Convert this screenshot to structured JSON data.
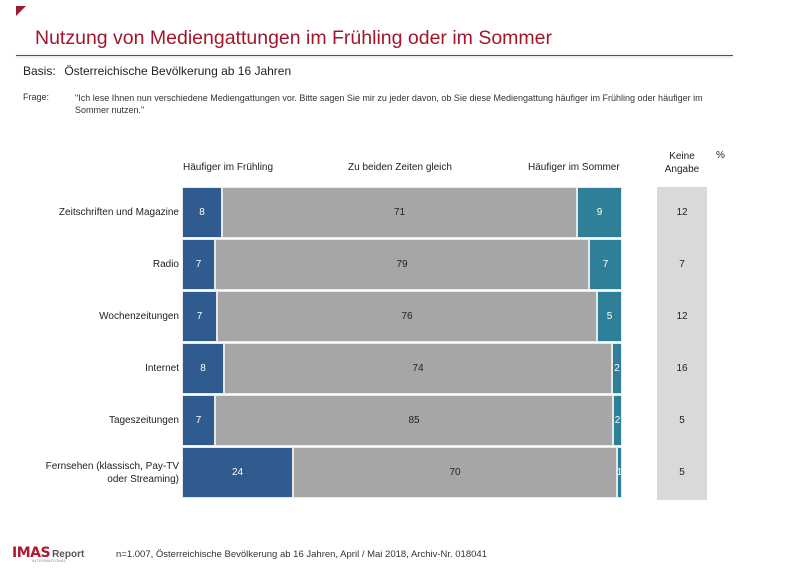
{
  "header": {
    "title": "Nutzung von Mediengattungen im Frühling oder im Sommer",
    "basis_label": "Basis:",
    "basis_text": "Österreichische Bevölkerung ab 16 Jahren",
    "frage_label": "Frage:",
    "frage_text": "\"Ich lese Ihnen nun verschiedene Mediengattungen vor. Bitte sagen Sie mir zu jeder davon, ob Sie diese Mediengattung häufiger im Frühling oder häufiger im Sommer nutzen.\""
  },
  "colors": {
    "title": "#a3162c",
    "spring": "#2f5b8e",
    "both": "#a6a6a6",
    "summer": "#2e8099",
    "no_answer_bg": "#d9d9d9"
  },
  "chart_data": {
    "type": "bar",
    "orientation": "horizontal",
    "stacked": true,
    "title": "Nutzung von Mediengattungen im Frühling oder im Sommer",
    "unit": "%",
    "categories": [
      "Zeitschriften und Magazine",
      "Radio",
      "Wochenzeitungen",
      "Internet",
      "Tageszeitungen",
      "Fernsehen (klassisch, Pay-TV oder Streaming)"
    ],
    "category_labels_display": [
      [
        "Zeitschriften und Magazine"
      ],
      [
        "Radio"
      ],
      [
        "Wochenzeitungen"
      ],
      [
        "Internet"
      ],
      [
        "Tageszeitungen"
      ],
      [
        "Fernsehen (klassisch, Pay-TV",
        "oder Streaming)"
      ]
    ],
    "series": [
      {
        "name": "Häufiger im Frühling",
        "key": "spring",
        "values": [
          8,
          7,
          7,
          8,
          7,
          24
        ]
      },
      {
        "name": "Zu beiden Zeiten gleich",
        "key": "both",
        "values": [
          71,
          79,
          76,
          74,
          85,
          70
        ]
      },
      {
        "name": "Häufiger im Sommer",
        "key": "summer",
        "values": [
          9,
          7,
          5,
          2,
          2,
          1
        ]
      }
    ],
    "no_answer": {
      "name_line1": "Keine",
      "name_line2": "Angabe",
      "values": [
        12,
        7,
        12,
        16,
        5,
        5
      ]
    },
    "percent_label": "%",
    "xlim": [
      0,
      100
    ],
    "grid": false,
    "legend": "top"
  },
  "footer": {
    "logo_main": "IMAS",
    "logo_sub": "INTERNATIONAL",
    "logo_report": "Report",
    "note": "n=1.007, Österreichische Bevölkerung ab 16 Jahren, April / Mai 2018, Archiv-Nr. 018041"
  }
}
